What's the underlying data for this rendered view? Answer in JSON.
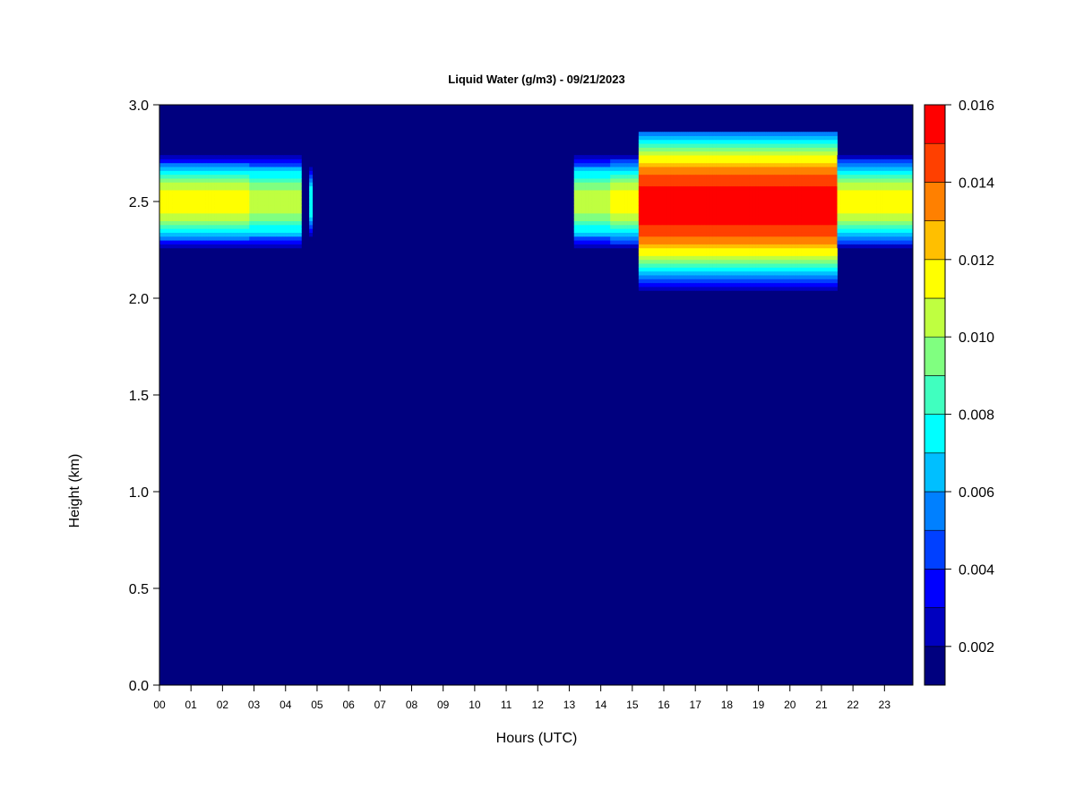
{
  "chart_data": {
    "type": "heatmap",
    "title": "Liquid Water (g/m3) - 09/21/2023",
    "xlabel": "Hours (UTC)",
    "ylabel": "Height (km)",
    "xlim": [
      0,
      23.9
    ],
    "ylim": [
      0,
      3.0
    ],
    "x_ticks": [
      0,
      1,
      2,
      3,
      4,
      5,
      6,
      7,
      8,
      9,
      10,
      11,
      12,
      13,
      14,
      15,
      16,
      17,
      18,
      19,
      20,
      21,
      22,
      23
    ],
    "x_tick_labels": [
      "00",
      "01",
      "02",
      "03",
      "04",
      "05",
      "06",
      "07",
      "08",
      "09",
      "10",
      "11",
      "12",
      "13",
      "14",
      "15",
      "16",
      "17",
      "18",
      "19",
      "20",
      "21",
      "22",
      "23"
    ],
    "y_ticks": [
      0.0,
      0.5,
      1.0,
      1.5,
      2.0,
      2.5,
      3.0
    ],
    "y_tick_labels": [
      "0.0",
      "0.5",
      "1.0",
      "1.5",
      "2.0",
      "2.5",
      "3.0"
    ],
    "colorbar": {
      "min": 0.001,
      "max": 0.016,
      "levels": [
        0.001,
        0.002,
        0.003,
        0.004,
        0.005,
        0.006,
        0.007,
        0.008,
        0.009,
        0.01,
        0.011,
        0.012,
        0.013,
        0.014,
        0.015,
        0.016
      ],
      "colors": [
        "#00007F",
        "#0000BF",
        "#0000FF",
        "#0040FF",
        "#0080FF",
        "#00BFFF",
        "#00FFFF",
        "#40FFBF",
        "#80FF80",
        "#BFFF40",
        "#FFFF00",
        "#FFBF00",
        "#FF8000",
        "#FF4000",
        "#FF0000",
        "#BF0000",
        "#800000"
      ],
      "tick_values": [
        0.002,
        0.004,
        0.006,
        0.008,
        0.01,
        0.012,
        0.014,
        0.016
      ],
      "tick_labels": [
        "0.002",
        "0.004",
        "0.006",
        "0.008",
        "0.010",
        "0.012",
        "0.014",
        "0.016"
      ]
    },
    "cloud_layers": [
      {
        "x_start": 0.0,
        "x_end": 2.85,
        "y_center": 2.5,
        "y_half_thickness": 0.25,
        "peak": 0.0115
      },
      {
        "x_start": 2.85,
        "x_end": 4.5,
        "y_center": 2.5,
        "y_half_thickness": 0.25,
        "peak": 0.0105
      },
      {
        "x_start": 4.75,
        "x_end": 4.85,
        "y_center": 2.5,
        "y_half_thickness": 0.2,
        "peak": 0.008
      },
      {
        "x_start": 13.15,
        "x_end": 14.3,
        "y_center": 2.5,
        "y_half_thickness": 0.25,
        "peak": 0.0105
      },
      {
        "x_start": 14.3,
        "x_end": 15.2,
        "y_center": 2.5,
        "y_half_thickness": 0.25,
        "peak": 0.0118
      },
      {
        "x_start": 15.2,
        "x_end": 21.5,
        "y_center": 2.48,
        "y_half_thickness": 0.45,
        "peak": 0.0158
      },
      {
        "x_start": 21.5,
        "x_end": 23.9,
        "y_center": 2.5,
        "y_half_thickness": 0.25,
        "peak": 0.0118
      }
    ]
  }
}
